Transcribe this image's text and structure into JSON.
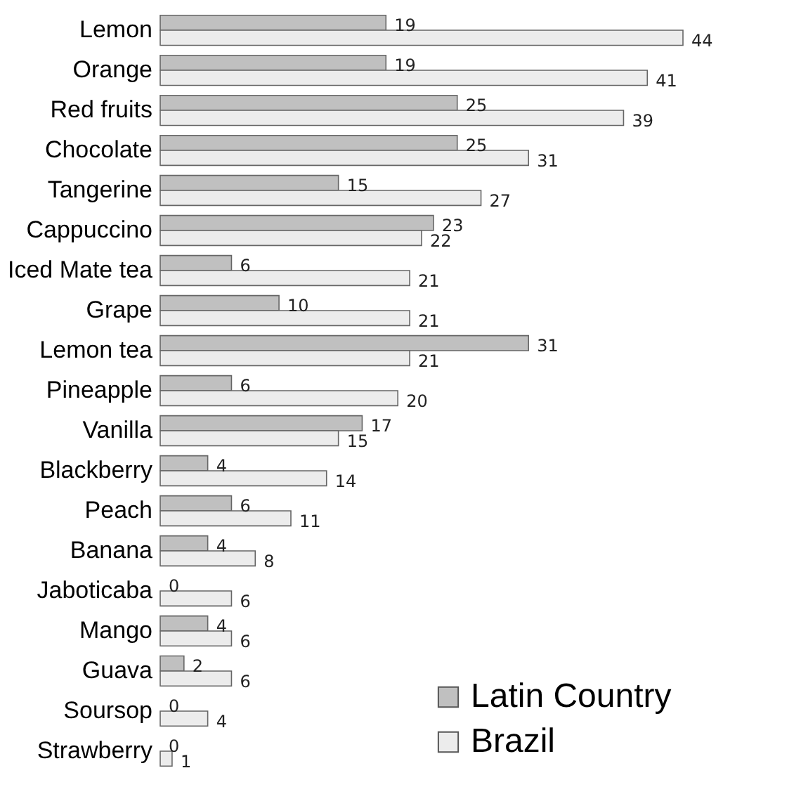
{
  "chart_data": {
    "type": "bar",
    "orientation": "horizontal",
    "data_labels": true,
    "legend": "bottom right",
    "categories": [
      "Lemon",
      "Orange",
      "Red fruits",
      "Chocolate",
      "Tangerine",
      "Cappuccino",
      "Iced Mate tea",
      "Grape",
      "Lemon tea",
      "Pineapple",
      "Vanilla",
      "Blackberry",
      "Peach",
      "Banana",
      "Jaboticaba",
      "Mango",
      "Guava",
      "Soursop",
      "Strawberry"
    ],
    "series": [
      {
        "name": "Latin Country",
        "color": "#c0c0c0",
        "values": [
          19,
          19,
          25,
          25,
          15,
          23,
          6,
          10,
          31,
          6,
          17,
          4,
          6,
          4,
          0,
          4,
          2,
          0,
          0
        ]
      },
      {
        "name": "Brazil",
        "color": "#ececec",
        "values": [
          44,
          41,
          39,
          31,
          27,
          22,
          21,
          21,
          21,
          20,
          15,
          14,
          11,
          8,
          6,
          6,
          6,
          4,
          1
        ]
      }
    ]
  }
}
